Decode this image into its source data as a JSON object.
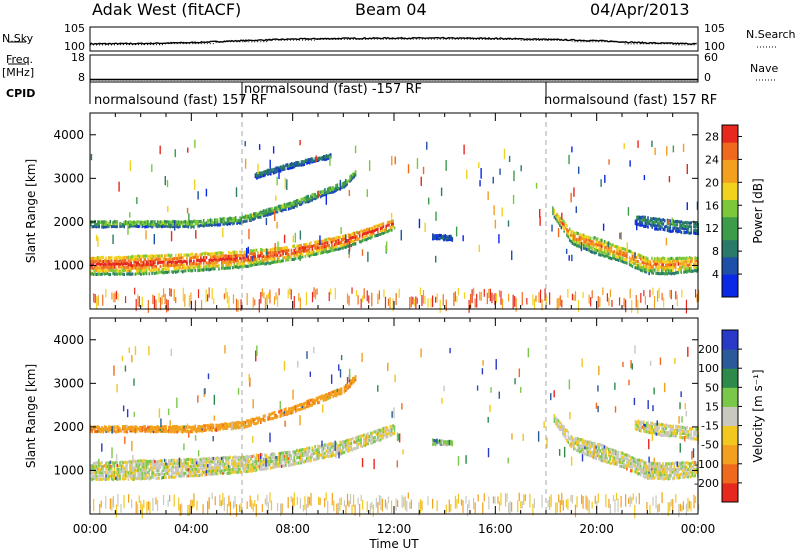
{
  "header": {
    "station": "Adak West (fitACF)",
    "beam": "Beam 04",
    "date": "04/Apr/2013"
  },
  "side_labels": {
    "nsky": "N.Sky",
    "nsearch": "N.Search",
    "freq": "Freq.",
    "freq_unit": "[MHz]",
    "nave": "Nave",
    "cpid": "CPID"
  },
  "cpid_segments": [
    {
      "label": "normalsound (fast) 157 RF",
      "start_hour": 0
    },
    {
      "label": "normalsound (fast) -157 RF",
      "start_hour": 6
    },
    {
      "label": "normalsound (fast) 157 RF",
      "start_hour": 18
    }
  ],
  "colors": {
    "power_scale": [
      "#0a28e6",
      "#1f4fa8",
      "#2a7a6a",
      "#3c9c4a",
      "#7cc83a",
      "#f2d21e",
      "#f2a01e",
      "#f06a1e",
      "#e6281e"
    ],
    "velocity_scale": [
      "#2a3ac8",
      "#2a5a9a",
      "#2e8a4a",
      "#7ac84a",
      "#c8c8c0",
      "#f2c81e",
      "#f2a01e",
      "#f06a1e",
      "#e6281e"
    ]
  },
  "chart_data": [
    {
      "type": "line",
      "title": "",
      "ylabel": "N.Sky",
      "ylabel_right": "N.Search",
      "yscale": "log",
      "y_ticks": [
        "10^5",
        "10^0"
      ],
      "y_ticks_right": [
        "10^5",
        "10^0"
      ],
      "x": [
        0,
        2,
        4,
        6,
        8,
        10,
        12,
        14,
        16,
        18,
        20,
        22,
        24
      ],
      "series": [
        {
          "values": [
            1.6,
            1.7,
            2.0,
            2.6,
            3.1,
            3.3,
            3.4,
            3.4,
            3.3,
            3.0,
            2.6,
            1.9,
            1.6
          ]
        }
      ]
    },
    {
      "type": "line",
      "ylabel": "Freq. [MHz]",
      "ylabel_right": "Nave",
      "y_ticks": [
        "18",
        "8"
      ],
      "y_ticks_right": [
        "60",
        "0"
      ],
      "x": [
        0,
        24
      ],
      "series": [
        {
          "values": [
            8.9,
            8.9
          ]
        }
      ]
    },
    {
      "type": "heatmap",
      "ylabel": "Slant Range [km]",
      "y_ticks": [
        "1000",
        "2000",
        "3000",
        "4000"
      ],
      "ylim": [
        0,
        4500
      ],
      "x_ticks": [
        "00:00",
        "04:00",
        "08:00",
        "12:00",
        "16:00",
        "20:00",
        "00:00"
      ],
      "xlim": [
        0,
        24
      ],
      "colorbar": {
        "label": "Power [dB]",
        "ticks": [
          "4",
          "8",
          "12",
          "16",
          "20",
          "24",
          "28"
        ],
        "range": [
          0,
          30
        ]
      },
      "echo_bands": [
        {
          "name": "main",
          "points": [
            [
              0,
              1000,
              220
            ],
            [
              2,
              1020,
              230
            ],
            [
              4,
              1080,
              220
            ],
            [
              6,
              1150,
              200
            ],
            [
              8,
              1300,
              180
            ],
            [
              10,
              1550,
              160
            ],
            [
              11.5,
              1850,
              140
            ],
            [
              12,
              1950,
              120
            ]
          ],
          "power": 26
        },
        {
          "name": "upper",
          "points": [
            [
              0,
              1950,
              80
            ],
            [
              2,
              1950,
              70
            ],
            [
              4,
              1950,
              80
            ],
            [
              6,
              2050,
              80
            ],
            [
              8,
              2400,
              80
            ],
            [
              10,
              2850,
              70
            ],
            [
              10.5,
              3150,
              60
            ]
          ],
          "power": 14
        },
        {
          "name": "topmost",
          "points": [
            [
              6.5,
              3050,
              60
            ],
            [
              8,
              3300,
              50
            ],
            [
              9.5,
              3500,
              40
            ]
          ],
          "power": 8
        },
        {
          "name": "evening",
          "points": [
            [
              18.3,
              2200,
              100
            ],
            [
              19,
              1650,
              160
            ],
            [
              20,
              1450,
              200
            ],
            [
              21,
              1250,
              180
            ],
            [
              22,
              1000,
              200
            ],
            [
              23,
              1000,
              200
            ],
            [
              24,
              1050,
              180
            ]
          ],
          "power": 22
        },
        {
          "name": "evening-upper",
          "points": [
            [
              21.5,
              2050,
              120
            ],
            [
              22.5,
              1950,
              150
            ],
            [
              24,
              1850,
              150
            ]
          ],
          "power": 8
        },
        {
          "name": "mid-patch",
          "points": [
            [
              13.5,
              1650,
              60
            ],
            [
              14.3,
              1620,
              50
            ]
          ],
          "power": 6
        }
      ]
    },
    {
      "type": "heatmap",
      "ylabel": "Slant Range [km]",
      "y_ticks": [
        "1000",
        "2000",
        "3000",
        "4000"
      ],
      "ylim": [
        0,
        4500
      ],
      "x_ticks": [
        "00:00",
        "04:00",
        "08:00",
        "12:00",
        "16:00",
        "20:00",
        "00:00"
      ],
      "xlim": [
        0,
        24
      ],
      "xlabel": "Time UT",
      "colorbar": {
        "label": "Velocity [m s⁻¹]",
        "ticks": [
          "200",
          "100",
          "50",
          "15",
          "-15",
          "-50",
          "-100",
          "-200"
        ],
        "range": [
          -250,
          250
        ]
      },
      "echo_bands": [
        {
          "name": "main",
          "points": [
            [
              0,
              1000,
              220
            ],
            [
              2,
              1020,
              230
            ],
            [
              4,
              1080,
              220
            ],
            [
              6,
              1150,
              200
            ],
            [
              8,
              1300,
              180
            ],
            [
              10,
              1550,
              160
            ],
            [
              11.5,
              1850,
              140
            ],
            [
              12,
              1950,
              120
            ]
          ],
          "velocity": 0
        },
        {
          "name": "upper",
          "points": [
            [
              0,
              1950,
              80
            ],
            [
              2,
              1950,
              70
            ],
            [
              4,
              1950,
              80
            ],
            [
              6,
              2050,
              80
            ],
            [
              8,
              2400,
              80
            ],
            [
              10,
              2850,
              70
            ],
            [
              10.5,
              3150,
              60
            ]
          ],
          "velocity": -80
        },
        {
          "name": "evening",
          "points": [
            [
              18.3,
              2200,
              100
            ],
            [
              19,
              1650,
              160
            ],
            [
              20,
              1450,
              200
            ],
            [
              21,
              1250,
              180
            ],
            [
              22,
              1000,
              200
            ],
            [
              23,
              1000,
              200
            ],
            [
              24,
              1050,
              180
            ]
          ],
          "velocity": 0
        },
        {
          "name": "evening-upper",
          "points": [
            [
              21.5,
              2050,
              120
            ],
            [
              22.5,
              1950,
              150
            ],
            [
              24,
              1850,
              150
            ]
          ],
          "velocity": 0
        },
        {
          "name": "mid-patch",
          "points": [
            [
              13.5,
              1650,
              60
            ],
            [
              14.3,
              1620,
              50
            ]
          ],
          "velocity": 30
        }
      ]
    }
  ]
}
